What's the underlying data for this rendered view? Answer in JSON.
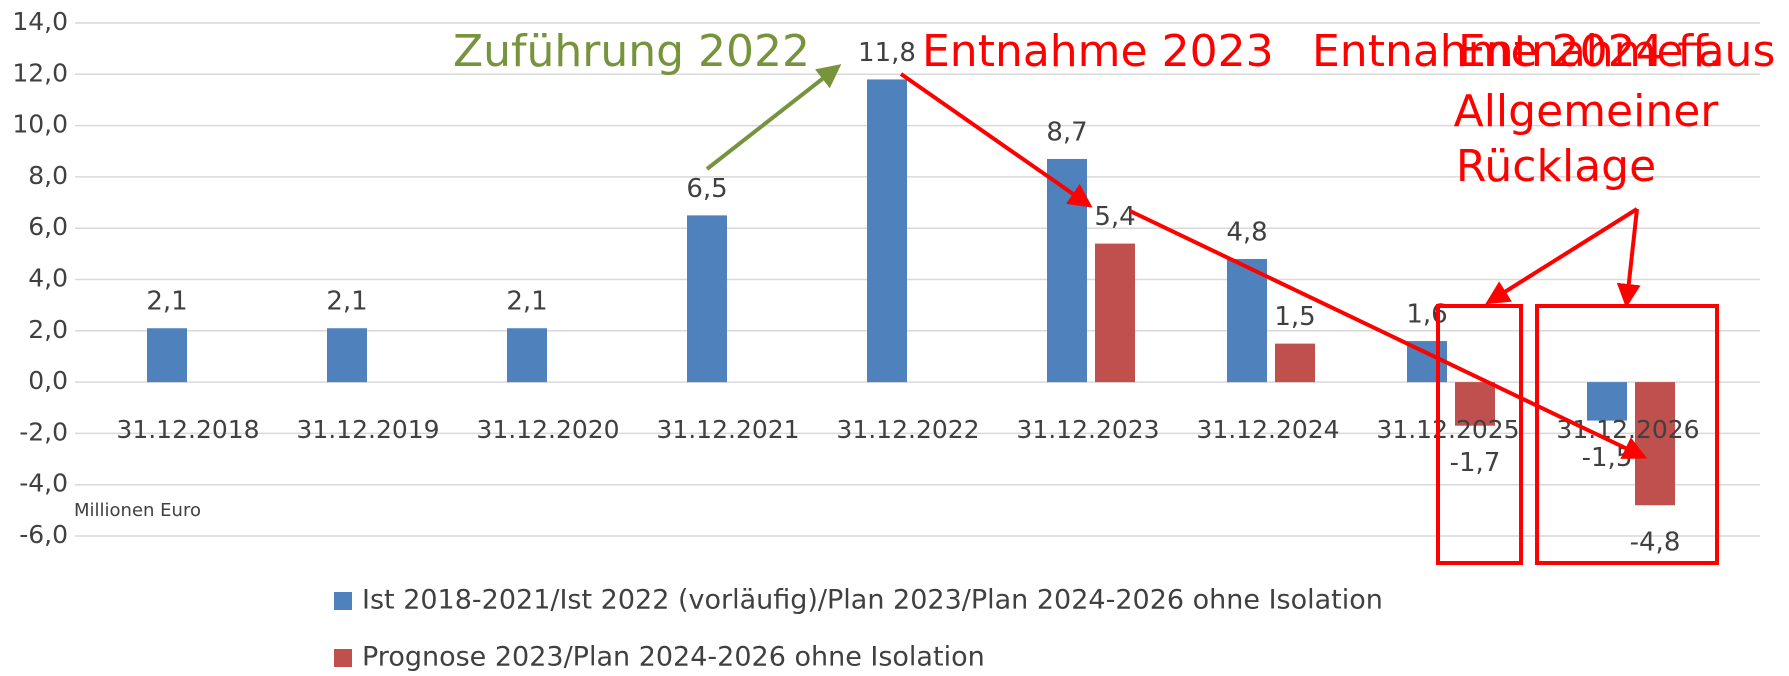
{
  "chart_data": {
    "type": "bar",
    "y_axis_label": "Millionen Euro",
    "categories": [
      "31.12.2018",
      "31.12.2019",
      "31.12.2020",
      "31.12.2021",
      "31.12.2022",
      "31.12.2023",
      "31.12.2024",
      "31.12.2025",
      "31.12.2026"
    ],
    "series": [
      {
        "name": "Ist 2018-2021/Ist 2022 (vorläufig)/Plan 2023/Plan 2024-2026 ohne Isolation",
        "color": "#4f81bd",
        "values": [
          2.1,
          2.1,
          2.1,
          6.5,
          11.8,
          8.7,
          4.8,
          1.6,
          -1.5
        ],
        "value_labels": [
          "2,1",
          "2,1",
          "2,1",
          "6,5",
          "11,8",
          "8,7",
          "4,8",
          "1,6",
          "-1,5"
        ]
      },
      {
        "name": "Prognose 2023/Plan 2024-2026 ohne Isolation",
        "color": "#c0504d",
        "values": [
          null,
          null,
          null,
          null,
          null,
          5.4,
          1.5,
          -1.7,
          -4.8
        ],
        "value_labels": [
          null,
          null,
          null,
          null,
          null,
          "5,4",
          "1,5",
          "-1,7",
          "-4,8"
        ]
      }
    ],
    "ylim": [
      -6,
      14
    ],
    "yticks": [
      {
        "value": -6,
        "label": "-6,0"
      },
      {
        "value": -4,
        "label": "-4,0"
      },
      {
        "value": -2,
        "label": "-2,0"
      },
      {
        "value": 0,
        "label": "0,0"
      },
      {
        "value": 2,
        "label": "2,0"
      },
      {
        "value": 4,
        "label": "4,0"
      },
      {
        "value": 6,
        "label": "6,0"
      },
      {
        "value": 8,
        "label": "8,0"
      },
      {
        "value": 10,
        "label": "10,0"
      },
      {
        "value": 12,
        "label": "12,0"
      },
      {
        "value": 14,
        "label": "14,0"
      }
    ],
    "grid": true,
    "annotations": [
      {
        "text": "Zuführung 2022",
        "color": "#77933c"
      },
      {
        "text": "Entnahme 2023",
        "color": "#ff0000"
      },
      {
        "text": "Entnahme 2024 ff.",
        "color": "#ff0000"
      },
      {
        "lines": [
          "Entnahme aus",
          "Allgemeiner",
          "Rücklage"
        ],
        "color": "#ff0000"
      }
    ]
  }
}
